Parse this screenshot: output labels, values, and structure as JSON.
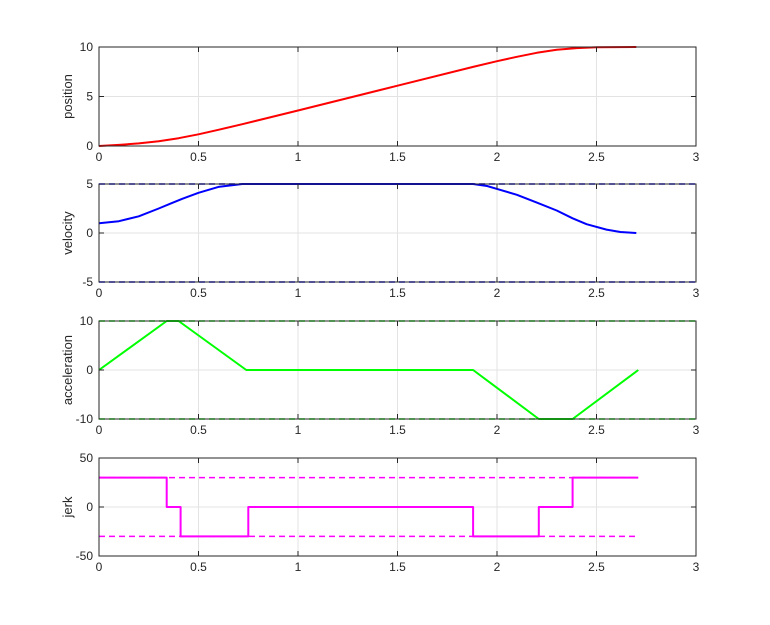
{
  "chart_data": [
    {
      "type": "line",
      "ylabel": "position",
      "xlim": [
        0,
        3
      ],
      "ylim": [
        0,
        10
      ],
      "xticks": [
        "0",
        "0.5",
        "1",
        "1.5",
        "2",
        "2.5",
        "3"
      ],
      "yticks": [
        "0",
        "5",
        "10"
      ],
      "grid": true,
      "series": [
        {
          "color": "#ff0000",
          "style": "solid",
          "x": [
            0,
            0.1,
            0.2,
            0.3,
            0.4,
            0.5,
            0.6,
            0.72,
            1.0,
            1.5,
            1.88,
            2.0,
            2.1,
            2.2,
            2.3,
            2.4,
            2.5,
            2.6,
            2.7
          ],
          "y": [
            0,
            0.11,
            0.26,
            0.48,
            0.79,
            1.18,
            1.64,
            2.2,
            3.59,
            6.09,
            7.99,
            8.57,
            9.01,
            9.41,
            9.72,
            9.89,
            9.97,
            9.99,
            10.0
          ]
        }
      ]
    },
    {
      "type": "line",
      "ylabel": "velocity",
      "xlim": [
        0,
        3
      ],
      "ylim": [
        -5,
        5
      ],
      "xticks": [
        "0",
        "0.5",
        "1",
        "1.5",
        "2",
        "2.5",
        "3"
      ],
      "yticks": [
        "-5",
        "0",
        "5"
      ],
      "grid": true,
      "series": [
        {
          "color": "#0000ff",
          "style": "solid",
          "x": [
            0,
            0.1,
            0.2,
            0.3,
            0.36,
            0.42,
            0.5,
            0.6,
            0.72,
            1.0,
            1.5,
            1.88,
            1.95,
            2.0,
            2.1,
            2.2,
            2.3,
            2.38,
            2.45,
            2.55,
            2.62,
            2.7
          ],
          "y": [
            1.0,
            1.2,
            1.7,
            2.5,
            3.0,
            3.5,
            4.1,
            4.7,
            5.0,
            5.0,
            5.0,
            5.0,
            4.8,
            4.5,
            3.9,
            3.1,
            2.3,
            1.5,
            0.9,
            0.35,
            0.1,
            0.0
          ]
        },
        {
          "color": "#0000ff",
          "style": "dashed",
          "x": [
            0,
            3
          ],
          "y": [
            5,
            5
          ]
        },
        {
          "color": "#0000ff",
          "style": "dashed",
          "x": [
            0,
            3
          ],
          "y": [
            -5,
            -5
          ]
        }
      ]
    },
    {
      "type": "line",
      "ylabel": "acceleration",
      "xlim": [
        0,
        3
      ],
      "ylim": [
        -10,
        10
      ],
      "xticks": [
        "0",
        "0.5",
        "1",
        "1.5",
        "2",
        "2.5",
        "3"
      ],
      "yticks": [
        "-10",
        "0",
        "10"
      ],
      "grid": true,
      "series": [
        {
          "color": "#00ff00",
          "style": "solid",
          "x": [
            0,
            0.34,
            0.4,
            0.74,
            1.88,
            2.21,
            2.38,
            2.71
          ],
          "y": [
            0,
            10,
            10,
            0,
            0,
            -10,
            -10,
            0
          ]
        },
        {
          "color": "#00ff00",
          "style": "dashed",
          "x": [
            0,
            3
          ],
          "y": [
            10,
            10
          ]
        },
        {
          "color": "#00ff00",
          "style": "dashed",
          "x": [
            0,
            3
          ],
          "y": [
            -10,
            -10
          ]
        }
      ]
    },
    {
      "type": "line",
      "ylabel": "jerk",
      "xlim": [
        0,
        3
      ],
      "ylim": [
        -50,
        50
      ],
      "xticks": [
        "0",
        "0.5",
        "1",
        "1.5",
        "2",
        "2.5",
        "3"
      ],
      "yticks": [
        "-50",
        "0",
        "50"
      ],
      "grid": true,
      "series": [
        {
          "color": "#ff00ff",
          "style": "solid",
          "x": [
            0,
            0.34,
            0.34,
            0.41,
            0.41,
            0.75,
            0.75,
            1.88,
            1.88,
            2.21,
            2.21,
            2.38,
            2.38,
            2.71
          ],
          "y": [
            30,
            30,
            0,
            0,
            -30,
            -30,
            0,
            0,
            -30,
            -30,
            0,
            0,
            30,
            30
          ]
        },
        {
          "color": "#ff00ff",
          "style": "dashed",
          "x": [
            0,
            2.71
          ],
          "y": [
            30,
            30
          ]
        },
        {
          "color": "#ff00ff",
          "style": "dashed",
          "x": [
            0,
            2.71
          ],
          "y": [
            -30,
            -30
          ]
        }
      ]
    }
  ]
}
